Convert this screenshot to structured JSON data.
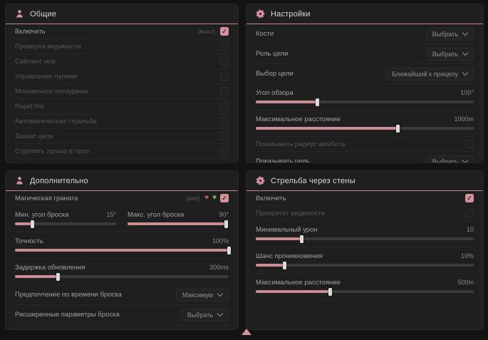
{
  "colors": {
    "accent": "#d2939b",
    "red": "#d15560",
    "green": "#7eb85c"
  },
  "panels": [
    {
      "id": "general",
      "title": "Общие",
      "icon": "person-icon",
      "rows": [
        {
          "type": "checkbox",
          "label": "Включить",
          "tag": "[выкл]",
          "checked": true,
          "disabled": false
        },
        {
          "type": "checkbox",
          "label": "Проверка видимости",
          "checked": false,
          "disabled": true
        },
        {
          "type": "checkbox",
          "label": "Сайлент нож",
          "checked": false,
          "disabled": true
        },
        {
          "type": "checkbox",
          "label": "Управление пулями",
          "checked": false,
          "disabled": true
        },
        {
          "type": "checkbox",
          "label": "Мгновенное попадание",
          "checked": false,
          "disabled": true
        },
        {
          "type": "checkbox",
          "label": "Rapid fire",
          "checked": false,
          "disabled": true
        },
        {
          "type": "checkbox",
          "label": "Автоматическая стрельба",
          "checked": false,
          "disabled": true
        },
        {
          "type": "checkbox",
          "label": "Захват цели",
          "checked": false,
          "disabled": true
        },
        {
          "type": "checkbox",
          "label": "Стрелять только в тело",
          "checked": false,
          "disabled": true
        }
      ]
    },
    {
      "id": "settings",
      "title": "Настройки",
      "icon": "gear-icon",
      "rows": [
        {
          "type": "dropdown",
          "label": "Кости",
          "value": "Выбрать"
        },
        {
          "type": "dropdown",
          "label": "Роль цели",
          "value": "Выбрать"
        },
        {
          "type": "dropdown",
          "label": "Выбор цели",
          "value": "Ближайший к прицелу"
        },
        {
          "type": "slider",
          "label": "Угол обзора",
          "value": "100°",
          "fill": 28
        },
        {
          "type": "slider",
          "label": "Максимальное расстояние",
          "value": "1000m",
          "fill": 65
        },
        {
          "type": "checkbox",
          "label": "Показывать радиус аимбота",
          "checked": false,
          "disabled": true
        },
        {
          "type": "dropdown",
          "label": "Показывать цель",
          "value": "Выбрать"
        }
      ]
    },
    {
      "id": "additional",
      "title": "Дополнительно",
      "icon": "person-icon",
      "rows": [
        {
          "type": "checkbox",
          "label": "Магическая граната",
          "tag": "[вкл]",
          "checked": true,
          "disabled": false,
          "icons": [
            {
              "name": "heart-red-icon",
              "color": "#d15560"
            },
            {
              "name": "heart-green-icon",
              "color": "#7eb85c"
            }
          ]
        },
        {
          "type": "slider_pair",
          "sliders": [
            {
              "label": "Мин. угол броска",
              "value": "15°",
              "fill": 17
            },
            {
              "label": "Макс. угол броска",
              "value": "90°",
              "fill": 97
            }
          ]
        },
        {
          "type": "slider",
          "label": "Точность",
          "value": "100%",
          "fill": 100
        },
        {
          "type": "slider",
          "label": "Задержка обновления",
          "value": "300ms",
          "fill": 20
        },
        {
          "type": "dropdown",
          "label": "Предпочтение по времени броска",
          "value": "Максимум"
        },
        {
          "type": "dropdown",
          "label": "Расширенные параметры броска",
          "value": "Выбрать"
        }
      ]
    },
    {
      "id": "wallbang",
      "title": "Стрельба через стены",
      "icon": "gear-icon",
      "rows": [
        {
          "type": "checkbox",
          "label": "Включить",
          "checked": true,
          "disabled": false
        },
        {
          "type": "checkbox",
          "label": "Приоритет видимости",
          "checked": false,
          "disabled": true
        },
        {
          "type": "slider",
          "label": "Минимальный урон",
          "value": "10",
          "fill": 21
        },
        {
          "type": "slider",
          "label": "Шанс проникновения",
          "value": "10%",
          "fill": 13
        },
        {
          "type": "slider",
          "label": "Максимальное расстояние",
          "value": "500m",
          "fill": 34
        }
      ]
    }
  ]
}
